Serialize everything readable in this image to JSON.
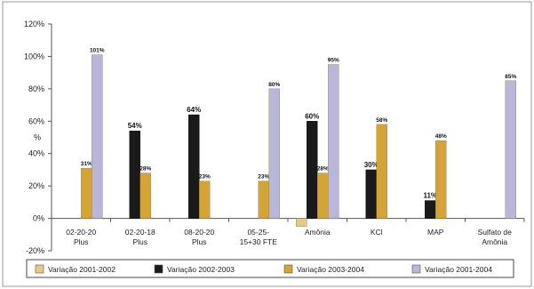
{
  "chart_data": {
    "type": "bar",
    "title": "",
    "xlabel": "",
    "ylabel": "%",
    "ylim": [
      -20,
      120
    ],
    "yticks": [
      "120%",
      "100%",
      "80%",
      "60%",
      "40%",
      "20%",
      "0%",
      "-20%"
    ],
    "grid": false,
    "legend_position": "bottom",
    "categories": [
      [
        "02-20-20",
        "Plus"
      ],
      [
        "02-20-18",
        "Plus"
      ],
      [
        "08-20-20",
        "Plus"
      ],
      [
        "05-25-",
        "15+30 FTE"
      ],
      [
        "Amônia"
      ],
      [
        "KCl"
      ],
      [
        "MAP"
      ],
      [
        "Sulfato de",
        "Amônia"
      ]
    ],
    "series": [
      {
        "name": "Variação 2001-2002",
        "color": "#e6c98a",
        "values": [
          null,
          null,
          null,
          null,
          -5,
          null,
          null,
          null
        ],
        "labels": [
          null,
          null,
          null,
          null,
          null,
          null,
          null,
          null
        ]
      },
      {
        "name": "Variação 2002-2003",
        "color": "#1a1a1a",
        "values": [
          null,
          54,
          64,
          null,
          60,
          30,
          11,
          null
        ],
        "labels": [
          null,
          "54%",
          "64%",
          null,
          "60%",
          "30%",
          "11%",
          null
        ]
      },
      {
        "name": "Variação 2003-2004",
        "color": "#d4a437",
        "values": [
          31,
          28,
          23,
          23,
          28,
          58,
          48,
          null
        ],
        "labels": [
          "31%",
          "28%",
          "23%",
          "23%",
          "28%",
          "58%",
          "48%",
          null
        ]
      },
      {
        "name": "Variação 2001-2004",
        "color": "#b9b6d8",
        "values": [
          101,
          null,
          null,
          80,
          95,
          null,
          null,
          85
        ],
        "labels": [
          "101%",
          null,
          null,
          "80%",
          "95%",
          null,
          null,
          "85%"
        ]
      }
    ]
  }
}
